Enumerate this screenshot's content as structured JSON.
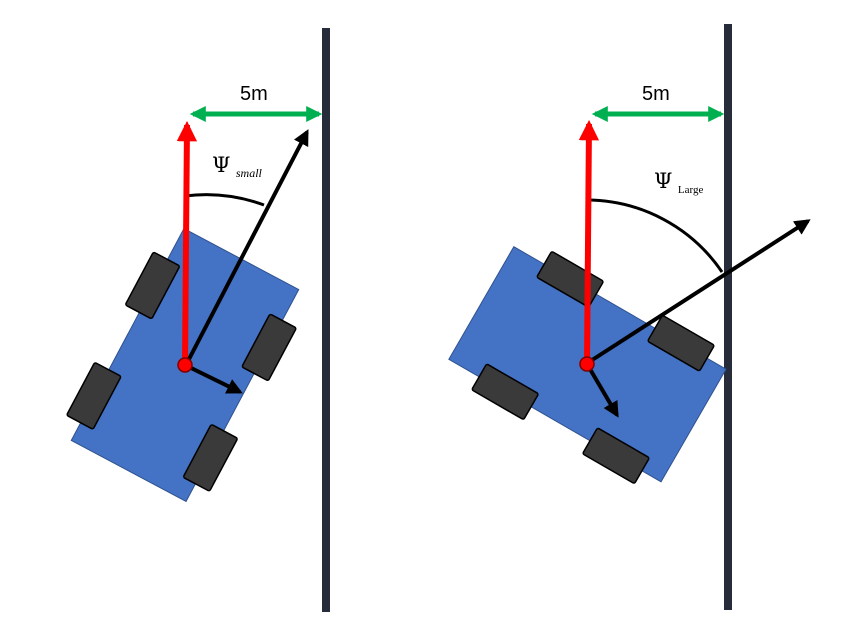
{
  "colors": {
    "wall": "#262c3a",
    "car_body": "#4472c4",
    "car_edge": "#2f528f",
    "wheel": "#3a3a3a",
    "heading_arrow": "#ff0000",
    "distance_arrow": "#00b050",
    "velocity_arrow": "#000000"
  },
  "left_panel": {
    "distance_label": "5m",
    "angle_symbol": "Ψ",
    "angle_subscript": "small"
  },
  "right_panel": {
    "distance_label": "5m",
    "angle_symbol": "Ψ",
    "angle_subscript": "Large"
  }
}
